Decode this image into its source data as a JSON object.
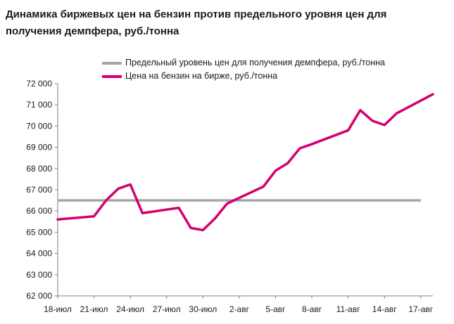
{
  "chart_data": {
    "type": "line",
    "title": "Динамика биржевых цен на бензин против предельного уровня цен для получения демпфера, руб./тонна",
    "xlabel": "",
    "ylabel": "",
    "ylim": [
      62000,
      72000
    ],
    "y_ticks": [
      "62 000",
      "63 000",
      "64 000",
      "65 000",
      "66 000",
      "67 000",
      "68 000",
      "69 000",
      "70 000",
      "71 000",
      "72 000"
    ],
    "x_ticks": [
      "18-июл",
      "21-июл",
      "24-июл",
      "27-июл",
      "30-июл",
      "2-авг",
      "5-авг",
      "8-авг",
      "11-авг",
      "14-авг",
      "17-авг"
    ],
    "x_tick_index": [
      0,
      3,
      6,
      9,
      12,
      15,
      18,
      21,
      24,
      27,
      30
    ],
    "legend_position": "top",
    "grid": false,
    "series": [
      {
        "name": "Предельный уровень цен для получения демпфера, руб./тонна",
        "color": "#a6a6a6",
        "values": [
          66500,
          66500,
          66500,
          66500,
          66500,
          66500,
          66500,
          66500,
          66500,
          66500,
          66500,
          66500,
          66500,
          66500,
          66500,
          66500,
          66500,
          66500,
          66500,
          66500,
          66500,
          66500,
          66500,
          66500,
          66500,
          66500,
          66500,
          66500,
          66500,
          66500,
          66500
        ]
      },
      {
        "name": "Цена на бензин на бирже, руб./тонна",
        "color": "#d4006f",
        "points": [
          [
            0,
            65600
          ],
          [
            3,
            65750
          ],
          [
            4,
            66500
          ],
          [
            5,
            67050
          ],
          [
            6,
            67250
          ],
          [
            7,
            65900
          ],
          [
            10,
            66150
          ],
          [
            11,
            65200
          ],
          [
            12,
            65100
          ],
          [
            13,
            65650
          ],
          [
            14,
            66350
          ],
          [
            17,
            67150
          ],
          [
            18,
            67900
          ],
          [
            19,
            68250
          ],
          [
            20,
            68950
          ],
          [
            21,
            69150
          ],
          [
            24,
            69800
          ],
          [
            25,
            70750
          ],
          [
            26,
            70250
          ],
          [
            27,
            70050
          ],
          [
            28,
            70600
          ],
          [
            31,
            71500
          ]
        ]
      }
    ]
  }
}
